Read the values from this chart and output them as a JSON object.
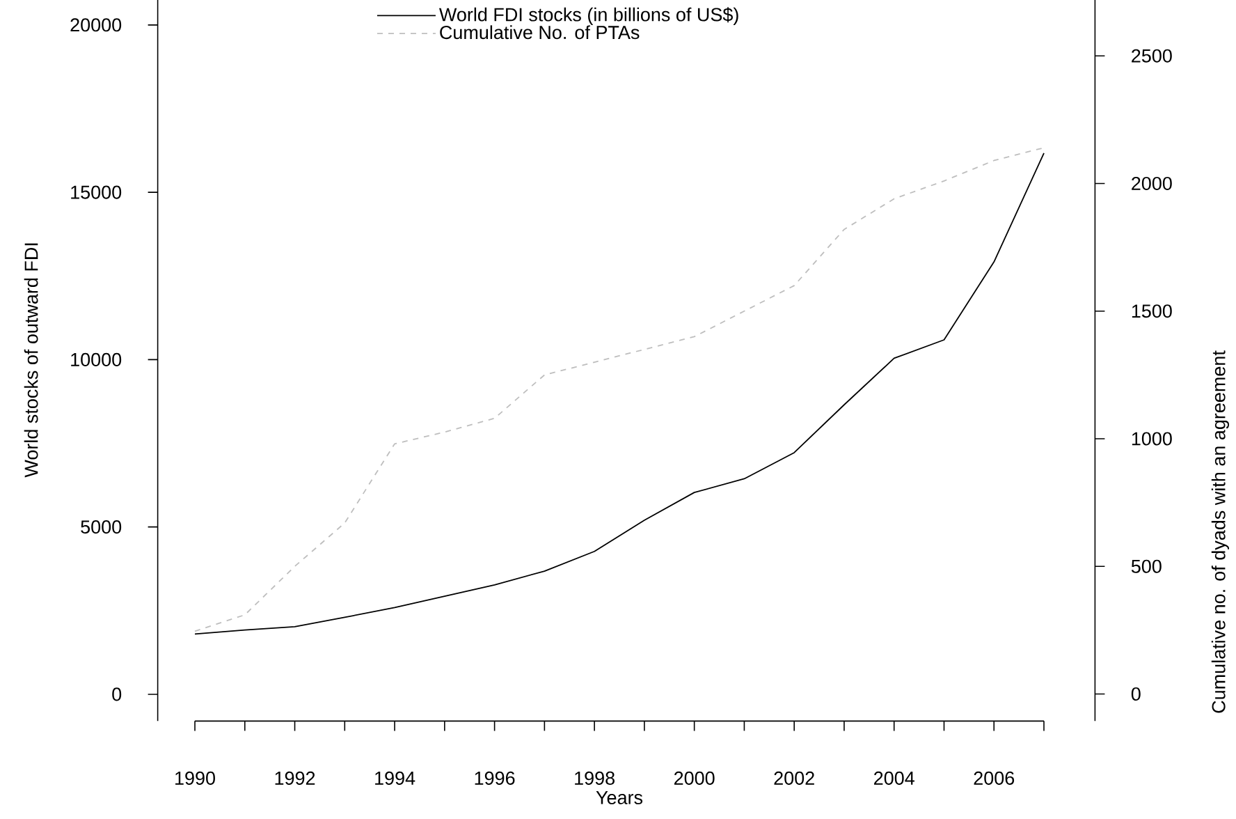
{
  "chart_data": {
    "type": "line",
    "xlabel": "Years",
    "ylabel": "World stocks of outward FDI",
    "y2label": "Cumulative no. of dyads with an agreement",
    "x": [
      1990,
      1991,
      1992,
      1993,
      1994,
      1995,
      1996,
      1997,
      1998,
      1999,
      2000,
      2001,
      2002,
      2003,
      2004,
      2005,
      2006,
      2007
    ],
    "series": [
      {
        "name": "World FDI stocks (in billions of US$)",
        "color": "#000000",
        "line_style": "solid",
        "values": [
          1800,
          1920,
          2020,
          2300,
          2590,
          2930,
          3270,
          3680,
          4270,
          5200,
          6030,
          6440,
          7220,
          8650,
          10040,
          10590,
          12920,
          16170
        ]
      },
      {
        "name": "Cumulative No. of PTAs",
        "color": "#bebebe",
        "line_style": "dashed",
        "axis": "y2",
        "values": [
          246,
          310,
          500,
          670,
          980,
          1026,
          1080,
          1250,
          1300,
          1350,
          1400,
          1500,
          1600,
          1820,
          1940,
          2010,
          2090,
          2140
        ]
      }
    ],
    "xlim": [
      1990,
      2007
    ],
    "xticks": [
      1990,
      {
        "value": 1991,
        "label": null
      },
      1992,
      {
        "value": 1993,
        "label": null
      },
      1994,
      {
        "value": 1995,
        "label": null
      },
      1996,
      {
        "value": 1997,
        "label": null
      },
      1998,
      {
        "value": 1999,
        "label": null
      },
      2000,
      {
        "value": 2001,
        "label": null
      },
      2002,
      {
        "value": 2003,
        "label": null
      },
      2004,
      {
        "value": 2005,
        "label": null
      },
      2006,
      {
        "value": 2007,
        "label": null
      }
    ],
    "ylim": [
      -800,
      20800
    ],
    "yticks": [
      0,
      5000,
      10000,
      15000,
      20000
    ],
    "y2lim": [
      -106,
      2726
    ],
    "y2ticks": [
      0,
      500,
      1000,
      1500,
      2000,
      2500
    ],
    "legend": "top",
    "marker": "none"
  }
}
